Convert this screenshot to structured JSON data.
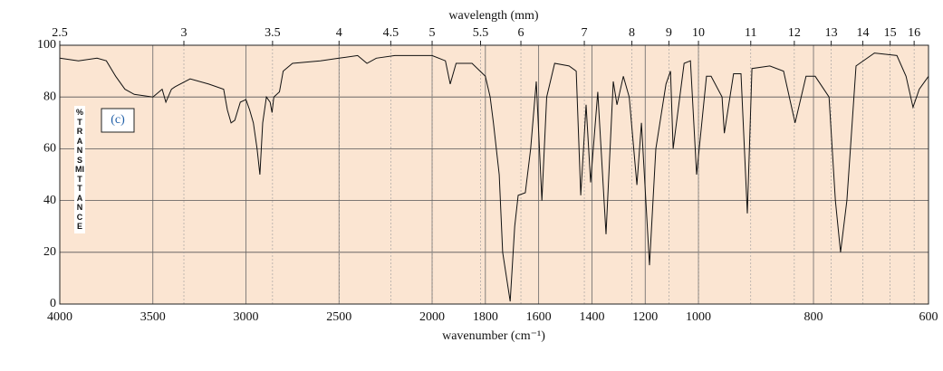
{
  "chart_data": {
    "type": "line",
    "x2label": "wavelength (mm)",
    "xlabel": "wavenumber (cm⁻¹)",
    "ylabel": "% TRANSMITTANCE",
    "annotation": "(c)",
    "color": "#111111",
    "plot_background": "#fbe5d2",
    "grid": true,
    "xlim": [
      4000,
      600
    ],
    "x_scale_breaks": [
      2000,
      1000
    ],
    "xticks": [
      4000,
      3500,
      3000,
      2500,
      2000,
      1800,
      1600,
      1400,
      1200,
      1000,
      800,
      600
    ],
    "x2ticks": [
      2.5,
      3,
      3.5,
      4,
      4.5,
      5,
      5.5,
      6,
      7,
      8,
      9,
      10,
      11,
      12,
      13,
      14,
      15,
      16
    ],
    "ylim": [
      0,
      100
    ],
    "yticks": [
      0,
      20,
      40,
      60,
      80,
      100
    ],
    "x": [
      4000,
      3900,
      3800,
      3750,
      3700,
      3650,
      3600,
      3500,
      3450,
      3430,
      3400,
      3380,
      3300,
      3200,
      3120,
      3100,
      3080,
      3060,
      3030,
      3000,
      2980,
      2960,
      2940,
      2925,
      2910,
      2890,
      2870,
      2860,
      2850,
      2820,
      2800,
      2750,
      2600,
      2500,
      2400,
      2350,
      2300,
      2200,
      2000,
      1950,
      1932,
      1910,
      1850,
      1820,
      1800,
      1782,
      1770,
      1748,
      1735,
      1707,
      1690,
      1677,
      1650,
      1630,
      1609,
      1588,
      1570,
      1540,
      1486,
      1459,
      1442,
      1422,
      1405,
      1378,
      1347,
      1320,
      1306,
      1282,
      1260,
      1231,
      1214,
      1184,
      1160,
      1122,
      1105,
      1095,
      1054,
      1030,
      1007,
      986,
      978,
      959,
      955,
      939,
      926,
      915,
      907,
      876,
      852,
      832,
      813,
      797,
      773,
      762,
      753,
      742,
      726,
      694,
      655,
      639,
      627,
      616,
      600
    ],
    "values": [
      95,
      94,
      95,
      94,
      88,
      83,
      81,
      80,
      83,
      78,
      83,
      84,
      87,
      85,
      83,
      75,
      70,
      71,
      78,
      79,
      75,
      70,
      60,
      50,
      70,
      80,
      78,
      74,
      80,
      82,
      90,
      93,
      94,
      95,
      96,
      93,
      95,
      96,
      96,
      94,
      85,
      93,
      93,
      90,
      88,
      80,
      70,
      50,
      20,
      1,
      30,
      42,
      43,
      60,
      86,
      40,
      80,
      93,
      92,
      90,
      42,
      77,
      47,
      82,
      27,
      86,
      77,
      88,
      80,
      46,
      70,
      15,
      60,
      85,
      90,
      60,
      93,
      94,
      50,
      88,
      88,
      80,
      66,
      89,
      89,
      35,
      91,
      92,
      90,
      70,
      88,
      88,
      80,
      40,
      20,
      40,
      92,
      97,
      96,
      88,
      76,
      83,
      88
    ]
  }
}
